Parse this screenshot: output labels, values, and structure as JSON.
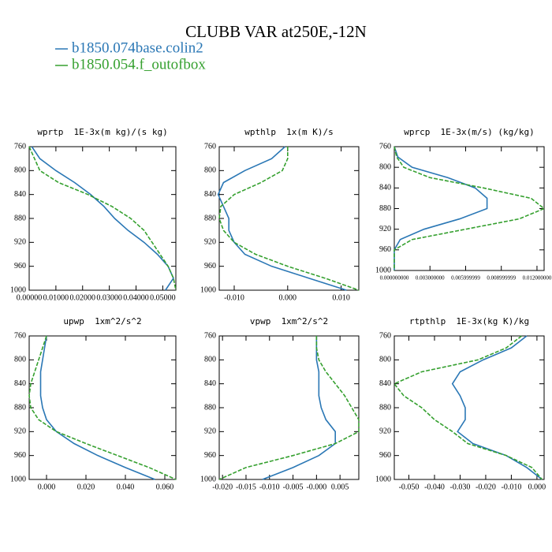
{
  "title": "CLUBB VAR at250E,-12N",
  "legend": [
    {
      "name": "b1850.074base.colin2",
      "color": "#2a77b5",
      "dash": false
    },
    {
      "name": "b1850.054.f_outofbox",
      "color": "#35a02f",
      "dash": true
    }
  ],
  "chart_data": [
    {
      "type": "line",
      "title": "wprtp  1E-3x(m kg)/(s kg)",
      "y": [
        760,
        780,
        800,
        820,
        840,
        860,
        880,
        900,
        920,
        940,
        960,
        980,
        1000
      ],
      "ylim": [
        760,
        1000
      ],
      "y_reverse": true,
      "yticks": [
        760,
        800,
        840,
        880,
        920,
        960,
        1000
      ],
      "xlim": [
        0,
        0.0549
      ],
      "xticks": [
        {
          "value": 0,
          "label": "0.00000"
        },
        {
          "value": 0.01,
          "label": "0.01000"
        },
        {
          "value": 0.02,
          "label": "0.02000"
        },
        {
          "value": 0.03,
          "label": "0.03000"
        },
        {
          "value": 0.04,
          "label": "0.04000"
        },
        {
          "value": 0.05,
          "label": "0.05000"
        }
      ],
      "series": [
        {
          "values": [
            0.001,
            0.004,
            0.01,
            0.017,
            0.023,
            0.028,
            0.032,
            0.037,
            0.043,
            0.048,
            0.052,
            0.054,
            0.051
          ]
        },
        {
          "values": [
            0.0,
            0.002,
            0.004,
            0.011,
            0.022,
            0.031,
            0.038,
            0.043,
            0.046,
            0.049,
            0.052,
            0.054,
            0.0549
          ]
        }
      ]
    },
    {
      "type": "line",
      "title": "wpthlp  1x(m K)/s",
      "y": [
        760,
        780,
        800,
        820,
        840,
        860,
        880,
        900,
        920,
        940,
        960,
        980,
        1000
      ],
      "ylim": [
        760,
        1000
      ],
      "y_reverse": true,
      "yticks": [
        760,
        800,
        840,
        880,
        920,
        960,
        1000
      ],
      "xlim": [
        -0.0128,
        0.0133
      ],
      "xticks": [
        {
          "value": -0.01,
          "label": "-0.010"
        },
        {
          "value": 0,
          "label": "0.000"
        },
        {
          "value": 0.01,
          "label": "0.010"
        }
      ],
      "series": [
        {
          "values": [
            -0.0005,
            -0.003,
            -0.008,
            -0.012,
            -0.013,
            -0.012,
            -0.011,
            -0.011,
            -0.01,
            -0.008,
            -0.003,
            0.004,
            0.011
          ]
        },
        {
          "values": [
            0.0,
            0.0,
            -0.001,
            -0.005,
            -0.01,
            -0.0125,
            -0.0128,
            -0.012,
            -0.01,
            -0.006,
            0.0,
            0.007,
            0.0133
          ]
        }
      ]
    },
    {
      "type": "line",
      "title": "wprcp  1E-3x(m/s) (kg/kg)",
      "y": [
        760,
        780,
        800,
        820,
        840,
        860,
        880,
        900,
        920,
        940,
        960,
        980,
        1000
      ],
      "ylim": [
        760,
        1000
      ],
      "y_reverse": true,
      "yticks": [
        760,
        800,
        840,
        880,
        920,
        960,
        1000
      ],
      "xlim": [
        0,
        0.0126
      ],
      "xticks": [
        {
          "value": 0,
          "label": "0.000000000"
        },
        {
          "value": 0.003,
          "label": "0.003000000"
        },
        {
          "value": 0.006,
          "label": "0.005999999"
        },
        {
          "value": 0.009,
          "label": "0.008999999"
        },
        {
          "value": 0.012,
          "label": "0.012000000"
        }
      ],
      "series": [
        {
          "values": [
            0,
            0.0003,
            0.0015,
            0.0045,
            0.0068,
            0.0078,
            0.0078,
            0.0055,
            0.0025,
            0.0005,
            0,
            0,
            0
          ]
        },
        {
          "values": [
            0,
            0.0002,
            0.0008,
            0.003,
            0.0075,
            0.0115,
            0.0126,
            0.0105,
            0.006,
            0.0015,
            0,
            0,
            0
          ]
        }
      ]
    },
    {
      "type": "line",
      "title": "upwp  1xm^2/s^2",
      "y": [
        760,
        780,
        800,
        820,
        840,
        860,
        880,
        900,
        920,
        940,
        960,
        980,
        1000
      ],
      "ylim": [
        760,
        1000
      ],
      "y_reverse": true,
      "yticks": [
        760,
        800,
        840,
        880,
        920,
        960,
        1000
      ],
      "xlim": [
        -0.0088,
        0.0656
      ],
      "xticks": [
        {
          "value": 0,
          "label": "0.000"
        },
        {
          "value": 0.02,
          "label": "0.020"
        },
        {
          "value": 0.04,
          "label": "0.040"
        },
        {
          "value": 0.06,
          "label": "0.060"
        }
      ],
      "series": [
        {
          "values": [
            0.0,
            -0.001,
            -0.002,
            -0.003,
            -0.003,
            -0.003,
            -0.002,
            0.0,
            0.005,
            0.014,
            0.026,
            0.04,
            0.055
          ]
        },
        {
          "values": [
            0.0,
            -0.002,
            -0.004,
            -0.006,
            -0.008,
            -0.0088,
            -0.008,
            -0.004,
            0.005,
            0.02,
            0.036,
            0.052,
            0.0656
          ]
        }
      ]
    },
    {
      "type": "line",
      "title": "vpwp  1xm^2/s^2",
      "y": [
        760,
        780,
        800,
        820,
        840,
        860,
        880,
        900,
        920,
        940,
        960,
        980,
        1000
      ],
      "ylim": [
        760,
        1000
      ],
      "y_reverse": true,
      "yticks": [
        760,
        800,
        840,
        880,
        920,
        960,
        1000
      ],
      "xlim": [
        -0.0207,
        0.009
      ],
      "xticks": [
        {
          "value": -0.02,
          "label": "-0.020"
        },
        {
          "value": -0.015,
          "label": "-0.015"
        },
        {
          "value": -0.01,
          "label": "-0.010"
        },
        {
          "value": -0.005,
          "label": "-0.005"
        },
        {
          "value": 0,
          "label": "-0.000"
        },
        {
          "value": 0.005,
          "label": "0.005"
        }
      ],
      "series": [
        {
          "values": [
            0.0,
            0.0,
            0.0,
            0.0005,
            0.0005,
            0.0005,
            0.001,
            0.002,
            0.004,
            0.004,
            0.0005,
            -0.005,
            -0.0115
          ]
        },
        {
          "values": [
            0.0,
            0.0,
            0.0005,
            0.002,
            0.004,
            0.006,
            0.0075,
            0.009,
            0.009,
            0.004,
            -0.005,
            -0.015,
            -0.0207
          ]
        }
      ]
    },
    {
      "type": "line",
      "title": "rtpthlp  1E-3x(kg K)/kg",
      "y": [
        760,
        780,
        800,
        820,
        840,
        860,
        880,
        900,
        920,
        940,
        960,
        980,
        1000
      ],
      "ylim": [
        760,
        1000
      ],
      "y_reverse": true,
      "yticks": [
        760,
        800,
        840,
        880,
        920,
        960,
        1000
      ],
      "xlim": [
        -0.0557,
        0.0028
      ],
      "xticks": [
        {
          "value": -0.05,
          "label": "-0.050"
        },
        {
          "value": -0.04,
          "label": "-0.040"
        },
        {
          "value": -0.03,
          "label": "-0.030"
        },
        {
          "value": -0.02,
          "label": "-0.020"
        },
        {
          "value": -0.01,
          "label": "-0.010"
        },
        {
          "value": 0,
          "label": "0.000"
        }
      ],
      "series": [
        {
          "values": [
            -0.004,
            -0.01,
            -0.021,
            -0.03,
            -0.033,
            -0.03,
            -0.028,
            -0.028,
            -0.031,
            -0.025,
            -0.012,
            -0.004,
            0.002
          ]
        },
        {
          "values": [
            -0.006,
            -0.012,
            -0.023,
            -0.045,
            -0.0557,
            -0.052,
            -0.045,
            -0.04,
            -0.033,
            -0.027,
            -0.012,
            -0.002,
            0.002
          ]
        }
      ]
    }
  ]
}
